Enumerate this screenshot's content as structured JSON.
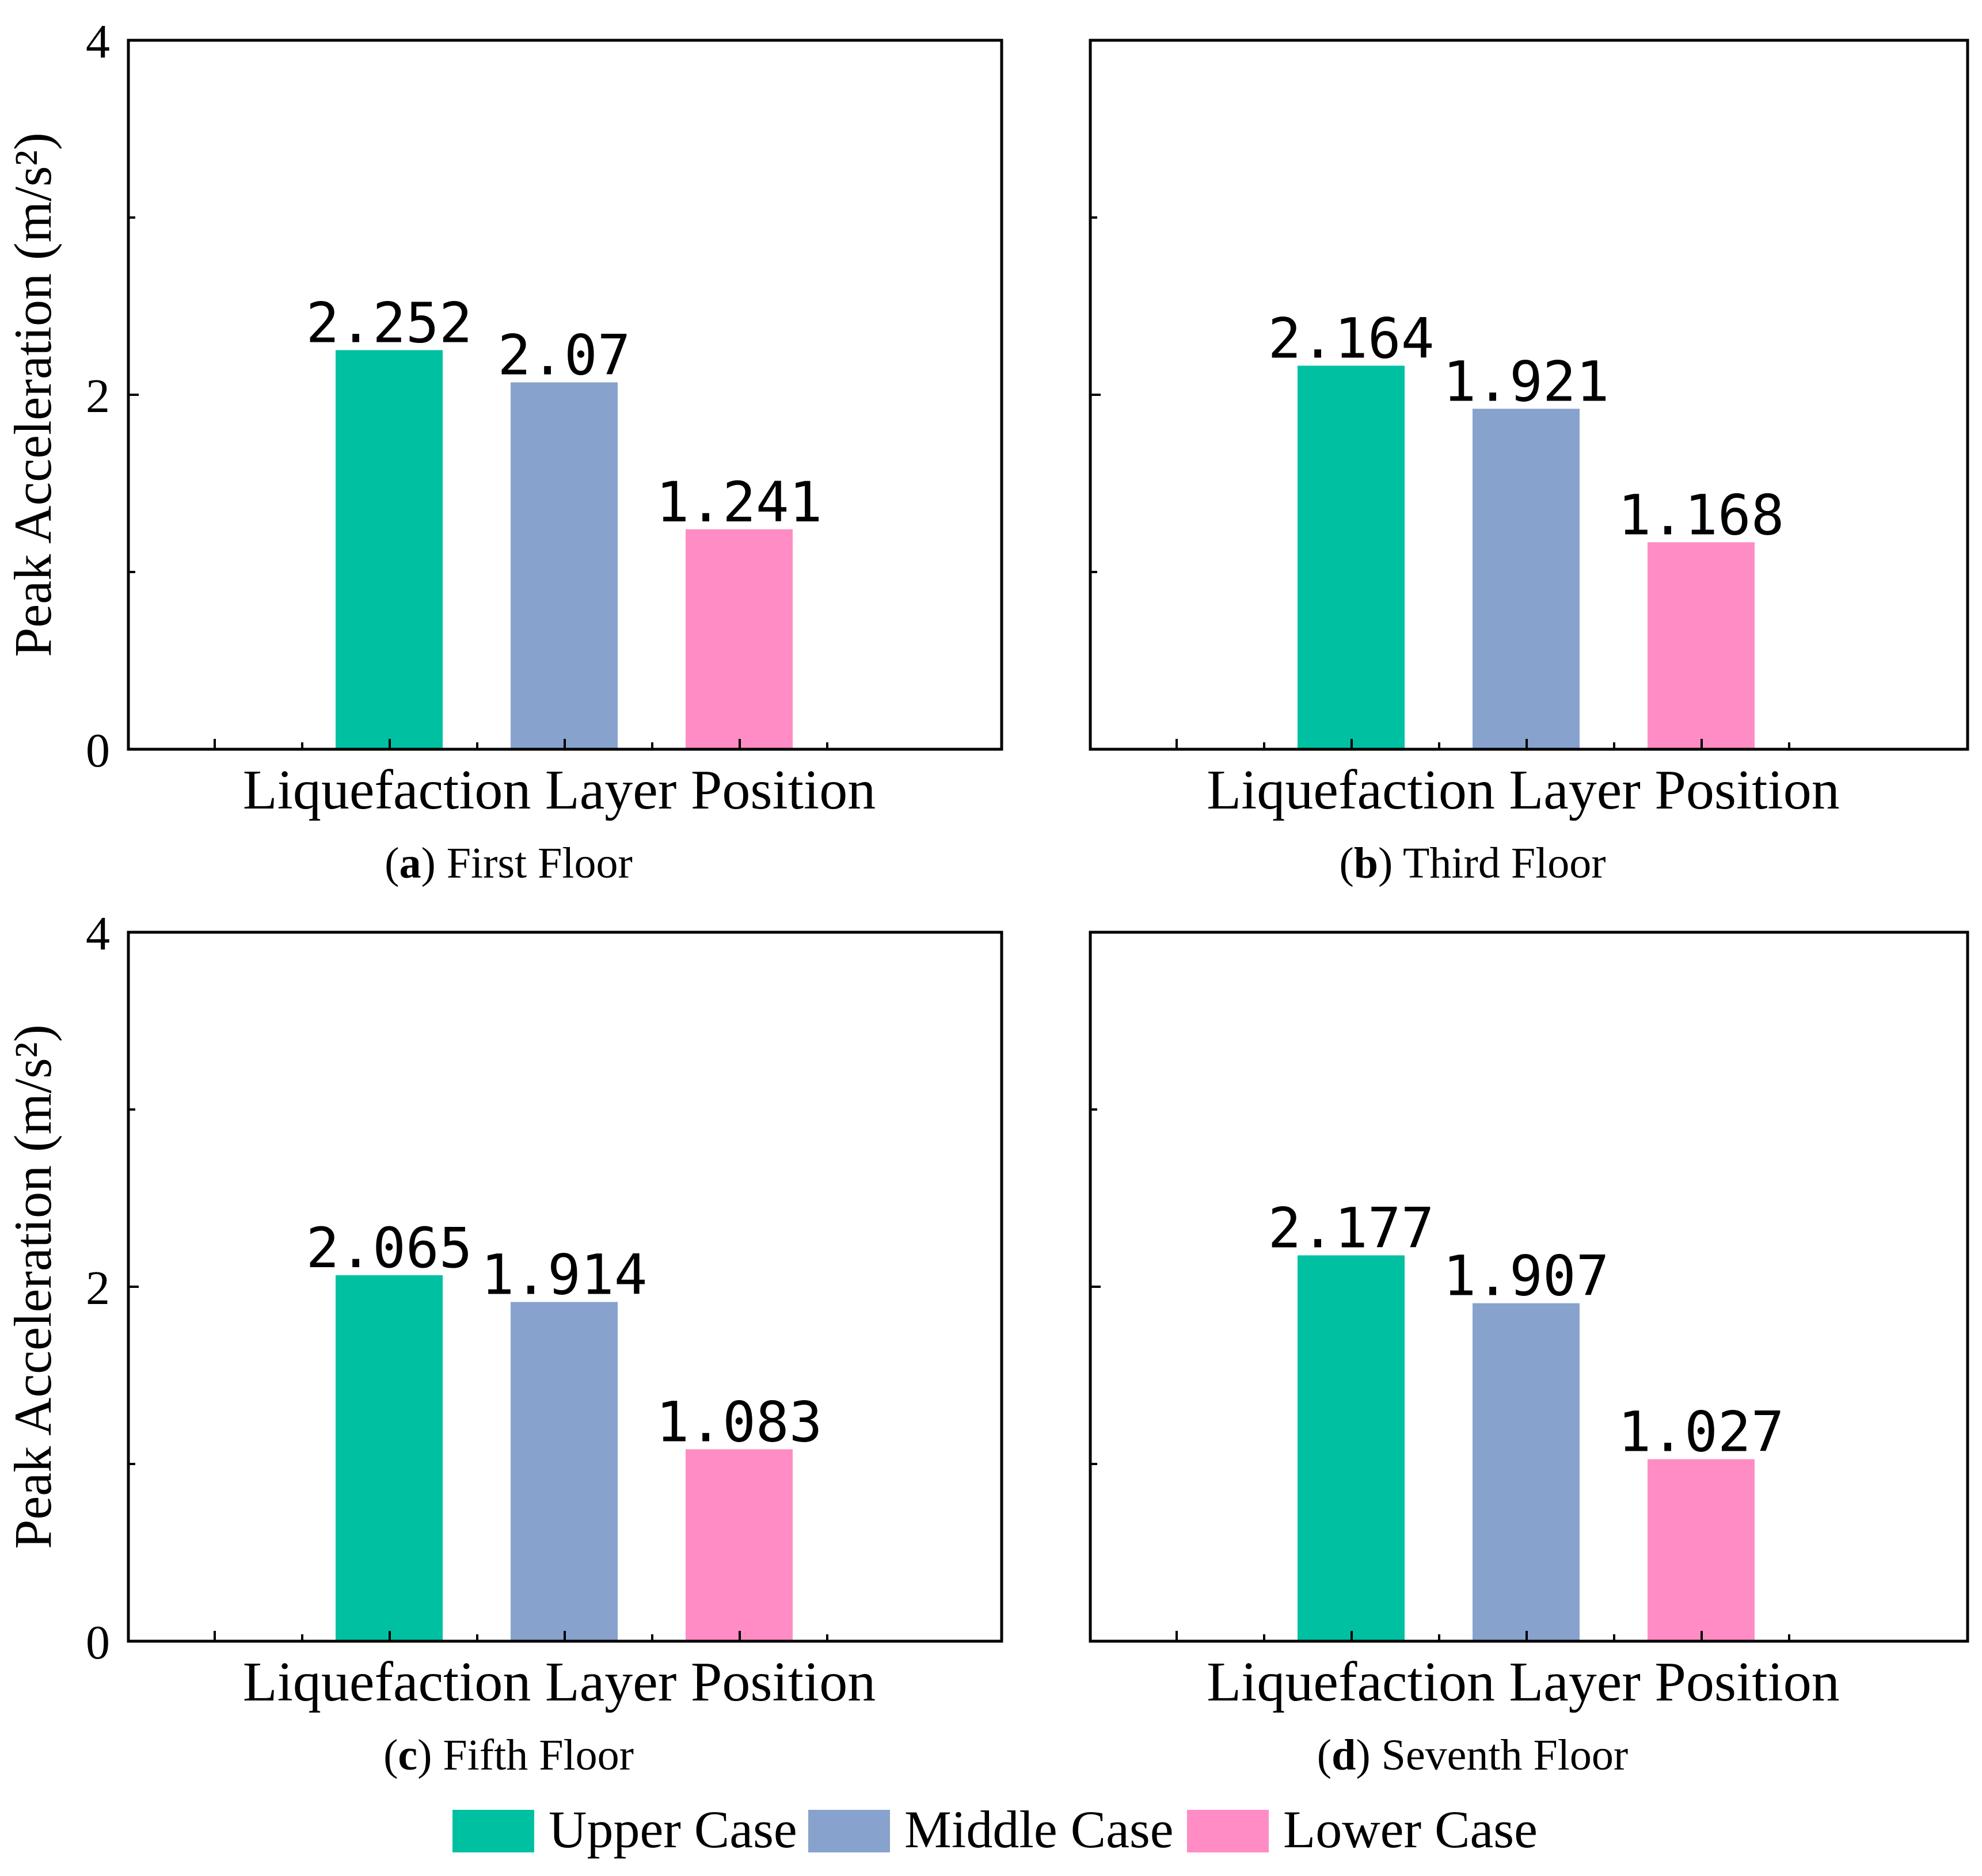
{
  "figure": {
    "legend": [
      {
        "label": "Upper Case",
        "color": "#00C0A2"
      },
      {
        "label": "Middle Case",
        "color": "#88A2CE"
      },
      {
        "label": "Lower Case",
        "color": "#FF8CC5"
      }
    ]
  },
  "chart_data": [
    {
      "type": "bar",
      "caption_letter": "a",
      "caption_text": " First Floor",
      "xlabel": "Liquefaction Layer Position",
      "ylabel": "Peak Acceleration (m/s²)",
      "ylim": [
        0,
        4
      ],
      "yticks": [
        "0",
        "2",
        "4"
      ],
      "series": [
        {
          "name": "Upper Case",
          "value": 2.252,
          "label": "2.252"
        },
        {
          "name": "Middle Case",
          "value": 2.07,
          "label": "2.07"
        },
        {
          "name": "Lower Case",
          "value": 1.241,
          "label": "1.241"
        }
      ]
    },
    {
      "type": "bar",
      "caption_letter": "b",
      "caption_text": " Third Floor",
      "xlabel": "Liquefaction Layer Position",
      "ylabel": "",
      "ylim": [
        0,
        4
      ],
      "yticks": [],
      "series": [
        {
          "name": "Upper Case",
          "value": 2.164,
          "label": "2.164"
        },
        {
          "name": "Middle Case",
          "value": 1.921,
          "label": "1.921"
        },
        {
          "name": "Lower Case",
          "value": 1.168,
          "label": "1.168"
        }
      ]
    },
    {
      "type": "bar",
      "caption_letter": "c",
      "caption_text": " Fifth Floor",
      "xlabel": "Liquefaction Layer Position",
      "ylabel": "Peak Acceleration (m/s²)",
      "ylim": [
        0,
        4
      ],
      "yticks": [
        "0",
        "2",
        "4"
      ],
      "series": [
        {
          "name": "Upper Case",
          "value": 2.065,
          "label": "2.065"
        },
        {
          "name": "Middle Case",
          "value": 1.914,
          "label": "1.914"
        },
        {
          "name": "Lower Case",
          "value": 1.083,
          "label": "1.083"
        }
      ]
    },
    {
      "type": "bar",
      "caption_letter": "d",
      "caption_text": " Seventh Floor",
      "xlabel": "Liquefaction Layer Position",
      "ylabel": "",
      "ylim": [
        0,
        4
      ],
      "yticks": [],
      "series": [
        {
          "name": "Upper Case",
          "value": 2.177,
          "label": "2.177"
        },
        {
          "name": "Middle Case",
          "value": 1.907,
          "label": "1.907"
        },
        {
          "name": "Lower Case",
          "value": 1.027,
          "label": "1.027"
        }
      ]
    }
  ]
}
